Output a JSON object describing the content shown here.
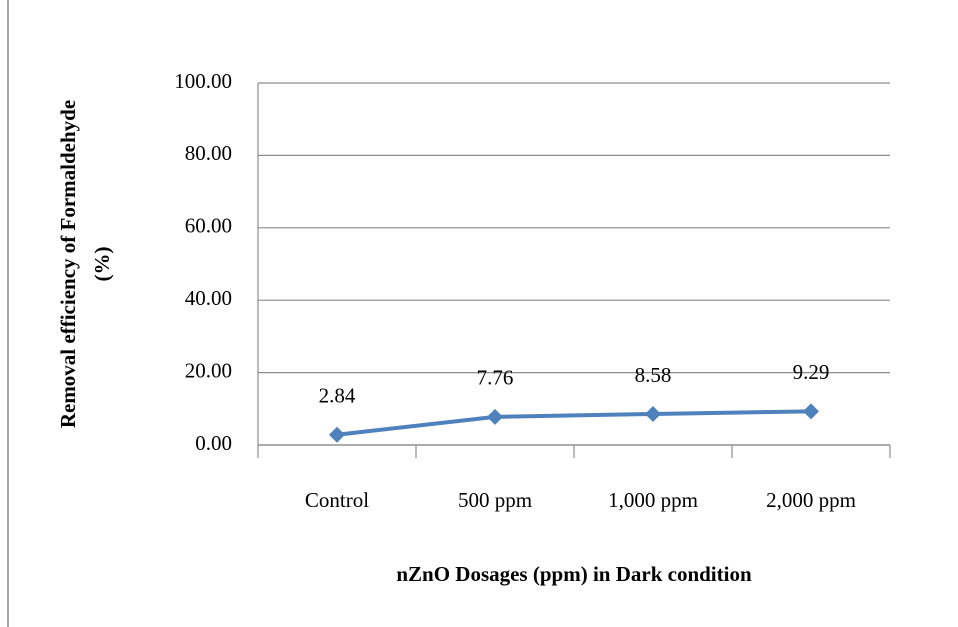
{
  "chart_data": {
    "type": "line",
    "ylabel": [
      "Removal efficiency of Formaldehyde",
      "(%)"
    ],
    "xlabel": "nZnO Dosages (ppm) in Dark condition",
    "categories": [
      "Control",
      "500 ppm",
      "1,000 ppm",
      "2,000 ppm"
    ],
    "series": [
      {
        "color": "#4f81bd",
        "values": [
          2.84,
          7.76,
          8.58,
          9.29
        ]
      }
    ],
    "ylim": [
      0,
      100
    ],
    "yticks": [
      {
        "value": 0,
        "label": "0.00"
      },
      {
        "value": 20,
        "label": "20.00"
      },
      {
        "value": 40,
        "label": "40.00"
      },
      {
        "value": 60,
        "label": "60.00"
      },
      {
        "value": 80,
        "label": "80.00"
      },
      {
        "value": 100,
        "label": "100.00"
      }
    ],
    "grid": true
  }
}
